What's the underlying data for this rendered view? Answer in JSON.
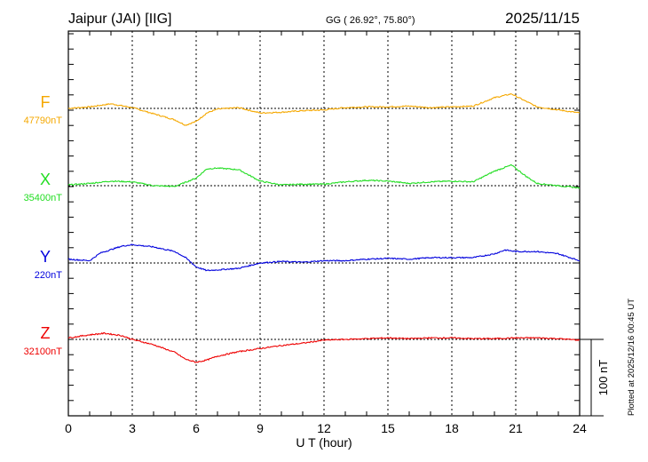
{
  "chart_data": {
    "type": "line",
    "title": "Jaipur (JAI)  [IIG]",
    "coords": "GG ( 26.92°,  75.80°)",
    "date": "2025/11/15",
    "xlabel": "U T (hour)",
    "xlim": [
      0,
      24
    ],
    "xticks": [
      "0",
      "3",
      "6",
      "9",
      "12",
      "15",
      "18",
      "21",
      "24"
    ],
    "scale_label": "100 nT",
    "scale_nT": 100,
    "plotted_note": "Plotted at 2025/12/16 00:45 UT",
    "grid": true,
    "series": [
      {
        "name": "F",
        "baseline_label": "47790nT",
        "color": "#f5a800",
        "points": [
          [
            0,
            0
          ],
          [
            1,
            2
          ],
          [
            2,
            6
          ],
          [
            3,
            1
          ],
          [
            4,
            -7
          ],
          [
            5,
            -15
          ],
          [
            5.5,
            -22
          ],
          [
            6,
            -17
          ],
          [
            6.5,
            -6
          ],
          [
            7,
            -1
          ],
          [
            8,
            1
          ],
          [
            9,
            -6
          ],
          [
            10,
            -5
          ],
          [
            11,
            -3
          ],
          [
            12,
            -2
          ],
          [
            13,
            1
          ],
          [
            14,
            2
          ],
          [
            15,
            2
          ],
          [
            16,
            3
          ],
          [
            17,
            1
          ],
          [
            18,
            2
          ],
          [
            19,
            3
          ],
          [
            20,
            14
          ],
          [
            20.8,
            19
          ],
          [
            21.5,
            9
          ],
          [
            22,
            2
          ],
          [
            23,
            -2
          ],
          [
            24,
            -6
          ]
        ]
      },
      {
        "name": "X",
        "baseline_label": "35400nT",
        "color": "#22dd22",
        "points": [
          [
            0,
            1
          ],
          [
            1,
            3
          ],
          [
            2,
            6
          ],
          [
            3,
            5
          ],
          [
            4,
            0
          ],
          [
            5,
            -1
          ],
          [
            6,
            10
          ],
          [
            6.5,
            22
          ],
          [
            7,
            23
          ],
          [
            8,
            21
          ],
          [
            9,
            6
          ],
          [
            10,
            1
          ],
          [
            11,
            2
          ],
          [
            12,
            2
          ],
          [
            13,
            5
          ],
          [
            14,
            7
          ],
          [
            15,
            6
          ],
          [
            16,
            3
          ],
          [
            17,
            5
          ],
          [
            18,
            6
          ],
          [
            19,
            5
          ],
          [
            20,
            19
          ],
          [
            20.8,
            27
          ],
          [
            21.5,
            12
          ],
          [
            22,
            3
          ],
          [
            23,
            0
          ],
          [
            24,
            -3
          ]
        ]
      },
      {
        "name": "Y",
        "baseline_label": "220nT",
        "color": "#0000dd",
        "points": [
          [
            0,
            5
          ],
          [
            1,
            3
          ],
          [
            1.5,
            13
          ],
          [
            2.5,
            22
          ],
          [
            3,
            24
          ],
          [
            4,
            21
          ],
          [
            5,
            15
          ],
          [
            5.5,
            7
          ],
          [
            6,
            -5
          ],
          [
            6.5,
            -10
          ],
          [
            7,
            -9
          ],
          [
            8,
            -7
          ],
          [
            9,
            0
          ],
          [
            10,
            2
          ],
          [
            11,
            1
          ],
          [
            12,
            3
          ],
          [
            13,
            3
          ],
          [
            14,
            5
          ],
          [
            15,
            6
          ],
          [
            16,
            5
          ],
          [
            17,
            7
          ],
          [
            18,
            7
          ],
          [
            19,
            7
          ],
          [
            20,
            12
          ],
          [
            20.5,
            17
          ],
          [
            21,
            15
          ],
          [
            22,
            15
          ],
          [
            23,
            12
          ],
          [
            24,
            3
          ]
        ]
      },
      {
        "name": "Z",
        "baseline_label": "32100nT",
        "color": "#ee0000",
        "points": [
          [
            0,
            2
          ],
          [
            1,
            6
          ],
          [
            1.7,
            8
          ],
          [
            2.5,
            5
          ],
          [
            3,
            0
          ],
          [
            4,
            -7
          ],
          [
            5,
            -17
          ],
          [
            5.5,
            -26
          ],
          [
            6,
            -30
          ],
          [
            6.5,
            -27
          ],
          [
            7,
            -22
          ],
          [
            8,
            -16
          ],
          [
            9,
            -12
          ],
          [
            10,
            -8
          ],
          [
            11,
            -5
          ],
          [
            12,
            -1
          ],
          [
            13,
            0
          ],
          [
            14,
            1
          ],
          [
            15,
            2
          ],
          [
            16,
            1
          ],
          [
            17,
            2
          ],
          [
            18,
            2
          ],
          [
            19,
            1
          ],
          [
            20,
            1
          ],
          [
            21,
            2
          ],
          [
            22,
            2
          ],
          [
            23,
            1
          ],
          [
            24,
            -1
          ]
        ]
      }
    ]
  }
}
